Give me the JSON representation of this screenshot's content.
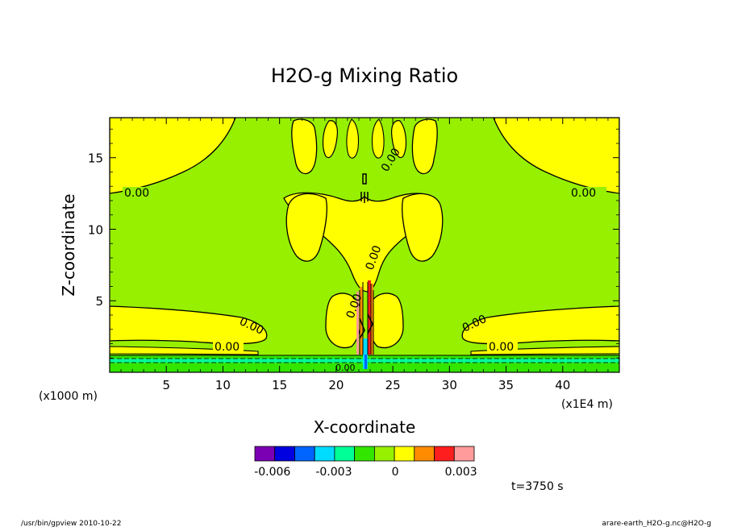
{
  "chart_data": {
    "type": "contour",
    "title": "H2O-g Mixing Ratio",
    "xlabel": "X-coordinate",
    "ylabel": "Z-coordinate",
    "x_unit": "(x1000 m)",
    "x_scale_note": "(x1E4 m)",
    "xlim": [
      0,
      45
    ],
    "ylim": [
      0,
      17.8
    ],
    "xticks": [
      "5",
      "10",
      "15",
      "20",
      "25",
      "30",
      "35",
      "40"
    ],
    "yticks": [
      "5",
      "10",
      "15"
    ],
    "contour_labels": [
      "0.00",
      "0.00",
      "0.00",
      "0.00",
      "0.00",
      "0.00",
      "0.00",
      "0.00",
      "0.00",
      "0.00"
    ],
    "colorbar": {
      "labels": [
        "-0.006",
        "-0.003",
        "0",
        "0.003"
      ],
      "colors": [
        "#7B00B4",
        "#0000E0",
        "#0064FF",
        "#00DCFF",
        "#00FF96",
        "#32E600",
        "#96F000",
        "#FFFF00",
        "#FF8C00",
        "#FF1E1E",
        "#FF9B9B"
      ]
    },
    "time_label": "t=3750 s"
  },
  "footer": {
    "left": "/usr/bin/gpview   2010-10-22",
    "right": "arare-earth_H2O-g.nc@H2O-g"
  }
}
